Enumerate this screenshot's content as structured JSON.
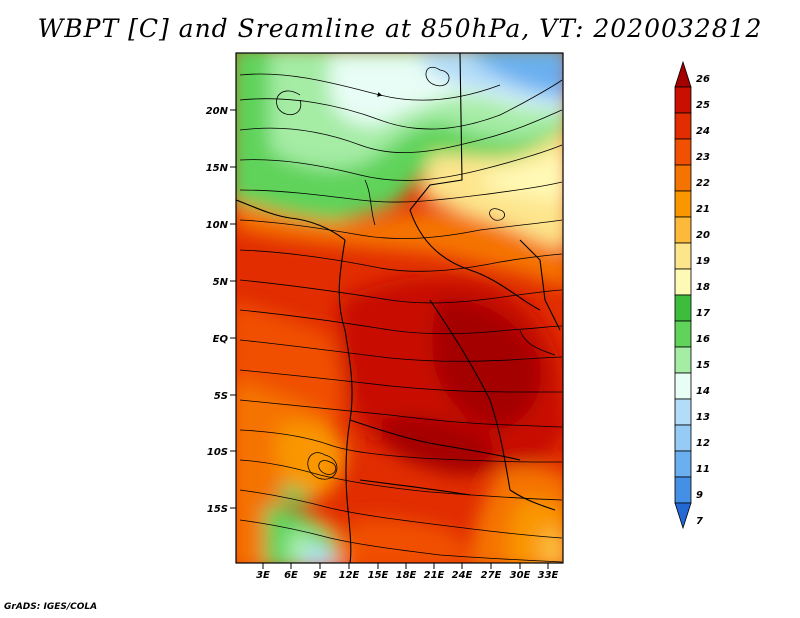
{
  "title": "WBPT [C] and Sreamline at 850hPa, VT: 2020032812",
  "footer": "GrADS: IGES/COLA",
  "lat_labels": [
    "20N",
    "15N",
    "10N",
    "5N",
    "EQ",
    "5S",
    "10S",
    "15S"
  ],
  "lon_labels": [
    "3E",
    "6E",
    "9E",
    "12E",
    "15E",
    "18E",
    "21E",
    "24E",
    "27E",
    "30E",
    "33E"
  ],
  "colorbar": {
    "labels": [
      "26",
      "25",
      "24",
      "23",
      "22",
      "21",
      "20",
      "19",
      "18",
      "17",
      "16",
      "15",
      "14",
      "13",
      "12",
      "11",
      "9",
      "7"
    ],
    "colors": [
      "#a50000",
      "#c80f00",
      "#e12d00",
      "#f05000",
      "#f57300",
      "#f99600",
      "#fcb93a",
      "#fde58c",
      "#fff9b6",
      "#3ebd3c",
      "#5fd35a",
      "#a5eca5",
      "#e8fdf5",
      "#b3dcf8",
      "#96cbf6",
      "#6aaff0",
      "#4390e6",
      "#2368d3"
    ]
  },
  "map": {
    "units": "C",
    "level": "850hPa",
    "valid_time": "2020032812"
  }
}
